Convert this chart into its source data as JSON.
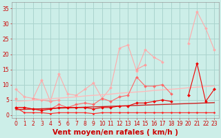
{
  "background_color": "#cceee8",
  "grid_color": "#aad4ce",
  "xlabel": "Vent moyen/en rafales ( km/h )",
  "ylabel_ticks": [
    0,
    5,
    10,
    15,
    20,
    25,
    30,
    35
  ],
  "xlim": [
    -0.5,
    23.5
  ],
  "ylim": [
    -1,
    37
  ],
  "x_values": [
    0,
    1,
    2,
    3,
    4,
    5,
    6,
    7,
    8,
    9,
    10,
    11,
    12,
    13,
    14,
    15,
    16,
    17,
    18,
    19,
    20,
    21,
    22,
    23
  ],
  "series": [
    {
      "name": "light_pink_jagged",
      "color": "#ffaaaa",
      "linewidth": 0.8,
      "marker": "D",
      "markersize": 2.0,
      "y": [
        8.5,
        6.0,
        5.5,
        11.5,
        4.5,
        13.5,
        7.0,
        6.5,
        8.5,
        10.5,
        5.5,
        9.0,
        22.0,
        23.0,
        14.5,
        21.5,
        19.0,
        17.5,
        null,
        null,
        23.5,
        34.0,
        28.5,
        21.5
      ]
    },
    {
      "name": "med_pink_short",
      "color": "#ff9999",
      "linewidth": 0.8,
      "marker": "D",
      "markersize": 2.0,
      "y": [
        5.5,
        null,
        5.5,
        5.0,
        4.5,
        5.0,
        null,
        null,
        null,
        null,
        null,
        null,
        null,
        null,
        15.0,
        16.5,
        null,
        null,
        null,
        null,
        null,
        null,
        null,
        null
      ]
    },
    {
      "name": "pink_trend_upper",
      "color": "#ffbbbb",
      "linewidth": 1.0,
      "marker": null,
      "markersize": 0,
      "y": [
        4.5,
        4.7,
        4.9,
        5.1,
        5.4,
        5.6,
        5.8,
        6.0,
        6.3,
        6.5,
        6.7,
        6.9,
        7.2,
        7.4,
        7.6,
        7.8,
        8.1,
        8.3,
        8.5,
        8.7,
        9.0,
        9.2,
        9.4,
        9.6
      ]
    },
    {
      "name": "salmon_wavy",
      "color": "#ff6666",
      "linewidth": 0.8,
      "marker": "D",
      "markersize": 2.0,
      "y": [
        2.5,
        2.5,
        2.0,
        2.0,
        2.0,
        3.5,
        2.5,
        3.5,
        4.0,
        3.5,
        5.5,
        4.5,
        6.0,
        6.5,
        12.5,
        9.5,
        9.5,
        10.0,
        7.0,
        null,
        6.5,
        null,
        null,
        8.5
      ]
    },
    {
      "name": "red_trend_lower",
      "color": "#cc2222",
      "linewidth": 1.0,
      "marker": null,
      "markersize": 0,
      "y": [
        1.8,
        1.9,
        2.0,
        2.1,
        2.2,
        2.3,
        2.4,
        2.5,
        2.6,
        2.7,
        2.8,
        2.9,
        3.0,
        3.1,
        3.2,
        3.3,
        3.4,
        3.5,
        3.6,
        3.7,
        3.8,
        3.9,
        4.0,
        4.1
      ]
    },
    {
      "name": "red_flat_bottom",
      "color": "#ff2222",
      "linewidth": 0.8,
      "marker": "D",
      "markersize": 1.5,
      "y": [
        2.5,
        0.8,
        0.8,
        0.8,
        0.5,
        0.8,
        0.8,
        0.8,
        0.8,
        0.5,
        0.8,
        0.8,
        0.8,
        0.8,
        0.8,
        0.8,
        0.8,
        0.8,
        0.8,
        0.8,
        0.8,
        0.8,
        0.8,
        0.8
      ]
    },
    {
      "name": "red_medium_wavy",
      "color": "#ee0000",
      "linewidth": 0.8,
      "marker": "D",
      "markersize": 2.0,
      "y": [
        2.5,
        2.5,
        2.0,
        1.5,
        2.0,
        2.5,
        2.5,
        2.5,
        2.5,
        2.0,
        2.5,
        2.5,
        3.0,
        3.0,
        4.0,
        4.0,
        4.5,
        5.0,
        4.5,
        null,
        6.5,
        17.0,
        4.5,
        8.5
      ]
    }
  ],
  "tick_label_color": "#cc0000",
  "axis_label_color": "#cc0000",
  "tick_fontsize": 5.5,
  "xlabel_fontsize": 7.5
}
